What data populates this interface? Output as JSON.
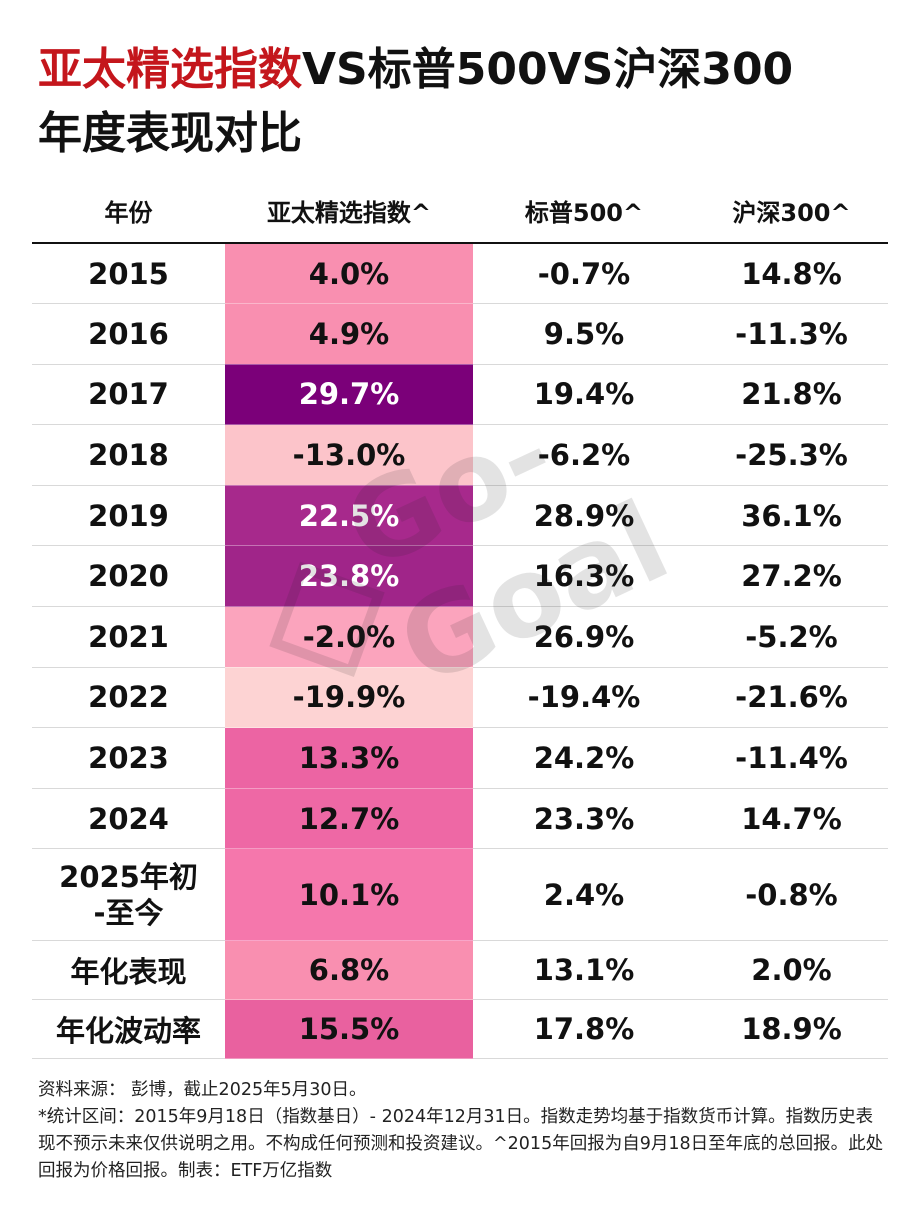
{
  "title": {
    "red_part": "亚太精选指数",
    "black_part": "VS标普500VS沪深300",
    "line2": "年度表现对比"
  },
  "table": {
    "headers": [
      "年份",
      "亚太精选指数^",
      "标普500^",
      "沪深300^"
    ],
    "rows": [
      {
        "year": "2015",
        "apac": "4.0%",
        "sp500": "-0.7%",
        "csi300": "14.8%",
        "apac_color": "#f98fb0",
        "apac_text": "#111111"
      },
      {
        "year": "2016",
        "apac": "4.9%",
        "sp500": "9.5%",
        "csi300": "-11.3%",
        "apac_color": "#f98fb0",
        "apac_text": "#111111"
      },
      {
        "year": "2017",
        "apac": "29.7%",
        "sp500": "19.4%",
        "csi300": "21.8%",
        "apac_color": "#7b0079",
        "apac_text": "#ffffff"
      },
      {
        "year": "2018",
        "apac": "-13.0%",
        "sp500": "-6.2%",
        "csi300": "-25.3%",
        "apac_color": "#fcc4ca",
        "apac_text": "#111111"
      },
      {
        "year": "2019",
        "apac": "22.5%",
        "sp500": "28.9%",
        "csi300": "36.1%",
        "apac_color": "#a7298c",
        "apac_text": "#ffffff"
      },
      {
        "year": "2020",
        "apac": "23.8%",
        "sp500": "16.3%",
        "csi300": "27.2%",
        "apac_color": "#a02589",
        "apac_text": "#ffffff"
      },
      {
        "year": "2021",
        "apac": "-2.0%",
        "sp500": "26.9%",
        "csi300": "-5.2%",
        "apac_color": "#fba4bd",
        "apac_text": "#111111"
      },
      {
        "year": "2022",
        "apac": "-19.9%",
        "sp500": "-19.4%",
        "csi300": "-21.6%",
        "apac_color": "#fdd3d3",
        "apac_text": "#111111"
      },
      {
        "year": "2023",
        "apac": "13.3%",
        "sp500": "24.2%",
        "csi300": "-11.4%",
        "apac_color": "#ec64a3",
        "apac_text": "#111111"
      },
      {
        "year": "2024",
        "apac": "12.7%",
        "sp500": "23.3%",
        "csi300": "14.7%",
        "apac_color": "#ee68a5",
        "apac_text": "#111111"
      },
      {
        "year_line1": "2025年初",
        "year_line2": "-至今",
        "apac": "10.1%",
        "sp500": "2.4%",
        "csi300": "-0.8%",
        "apac_color": "#f577ac",
        "apac_text": "#111111"
      },
      {
        "year": "年化表现",
        "apac": "6.8%",
        "sp500": "13.1%",
        "csi300": "2.0%",
        "apac_color": "#f98fb0",
        "apac_text": "#111111"
      },
      {
        "year": "年化波动率",
        "apac": "15.5%",
        "sp500": "17.8%",
        "csi300": "18.9%",
        "apac_color": "#e9619f",
        "apac_text": "#111111"
      }
    ]
  },
  "watermark": {
    "text": "Go-Goal",
    "icon": "diamond-logo-icon"
  },
  "footer": {
    "source": "资料来源：  彭博，截止2025年5月30日。",
    "notes": "*统计区间：2015年9月18日（指数基日）- 2024年12月31日。指数走势均基于指数货币计算。指数历史表现不预示未来仅供说明之用。不构成任何预测和投资建议。^2015年回报为自9月18日至年底的总回报。此处回报为价格回报。制表：ETF万亿指数"
  }
}
